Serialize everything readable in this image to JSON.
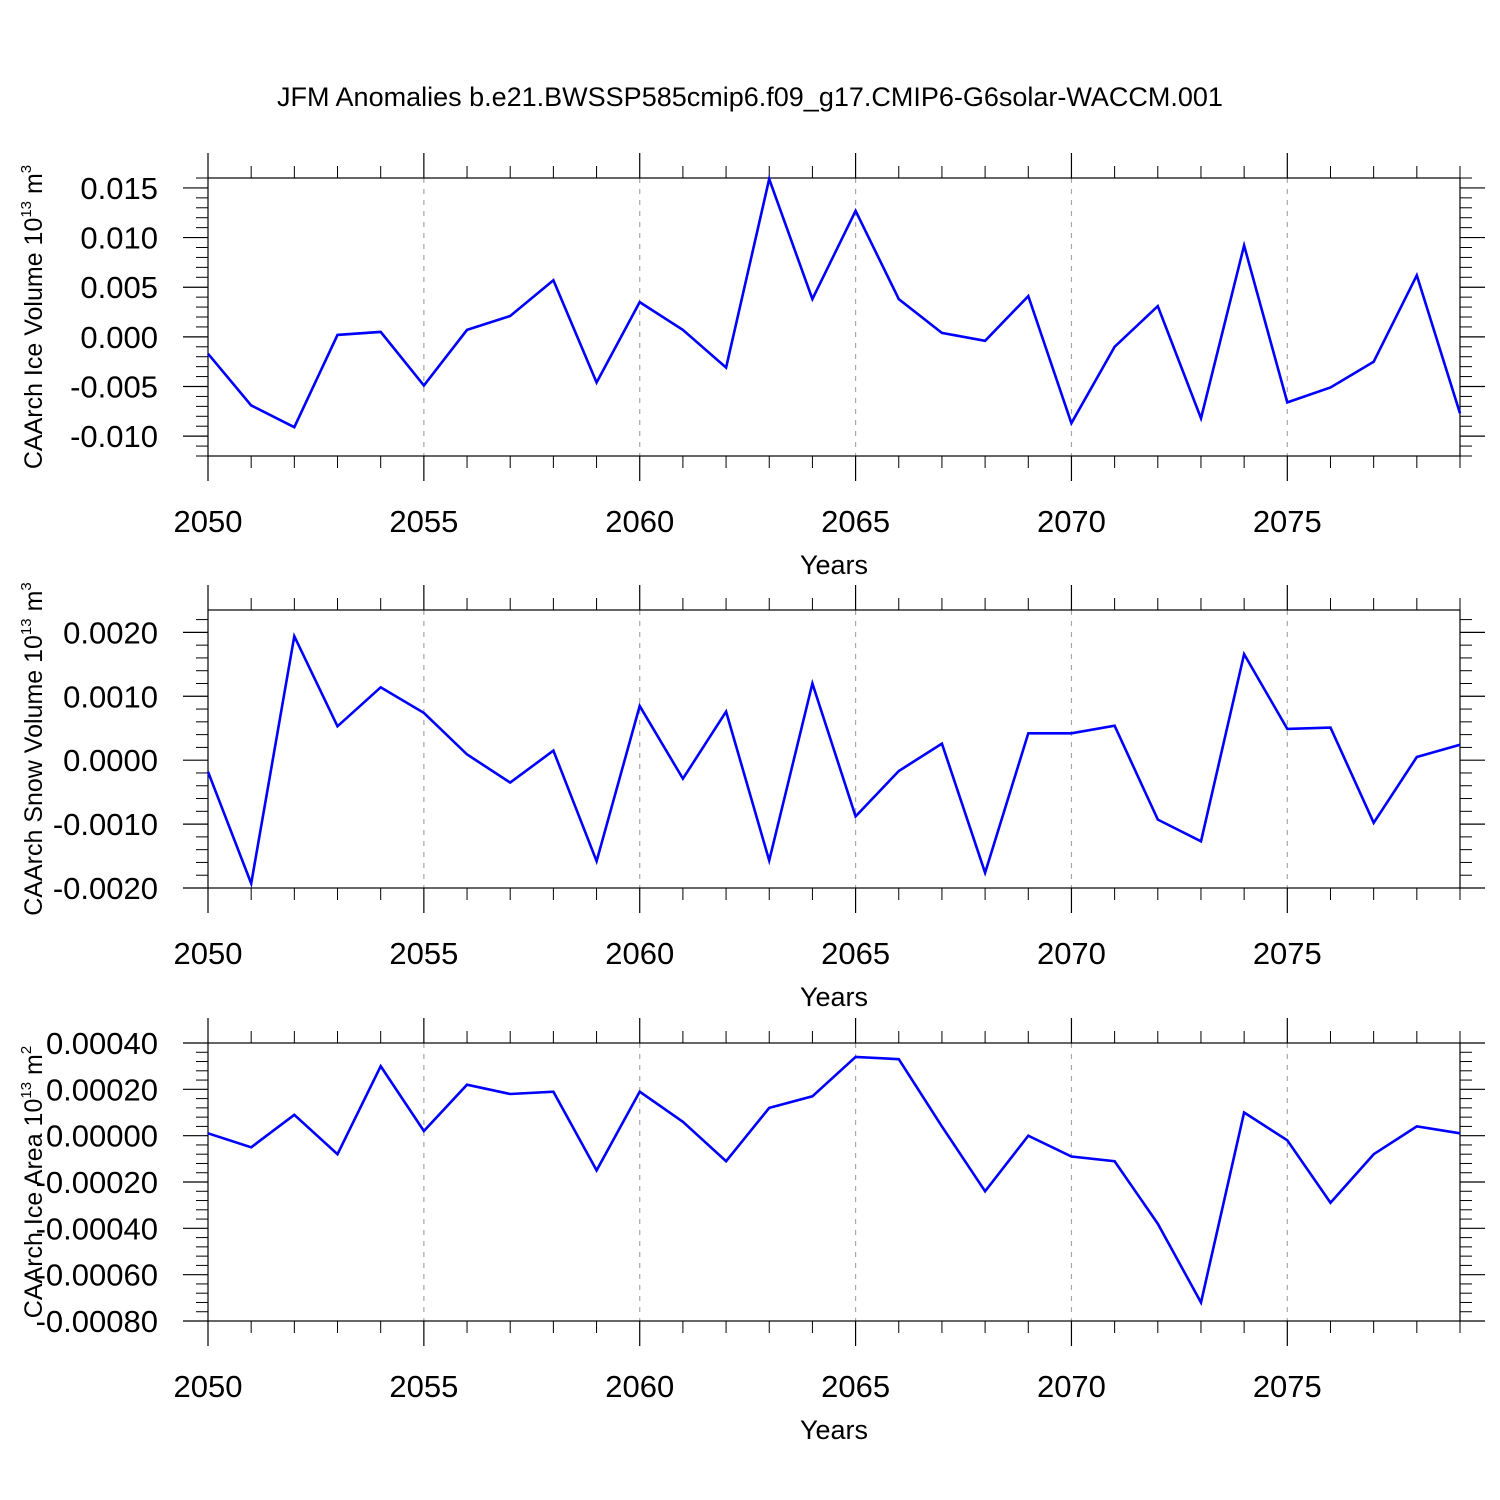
{
  "title": "JFM Anomalies b.e21.BWSSP585cmip6.f09_g17.CMIP6-G6solar-WACCM.001",
  "colors": {
    "line": "#0000ff",
    "grid": "#a8a8a8",
    "axes": "#000000"
  },
  "chart_data": [
    {
      "type": "line",
      "name": "ice-volume",
      "ylabel": "CAArch Ice Volume 10",
      "ylabel_sup": "13",
      "ylabel_unit": "m",
      "ylabel_unit_sup": "3",
      "xlabel": "Years",
      "xlim": [
        2050,
        2079
      ],
      "ylim": [
        -0.012,
        0.016
      ],
      "xticks": [
        2050,
        2055,
        2060,
        2065,
        2070,
        2075
      ],
      "xtick_labels": [
        "2050",
        "2055",
        "2060",
        "2065",
        "2070",
        "2075"
      ],
      "yticks": [
        -0.01,
        -0.005,
        0.0,
        0.005,
        0.01,
        0.015
      ],
      "ytick_labels": [
        "-0.010",
        "-0.005",
        "0.000",
        "0.005",
        "0.010",
        "0.015"
      ],
      "x": [
        2050,
        2051,
        2052,
        2053,
        2054,
        2055,
        2056,
        2057,
        2058,
        2059,
        2060,
        2061,
        2062,
        2063,
        2064,
        2065,
        2066,
        2067,
        2068,
        2069,
        2070,
        2071,
        2072,
        2073,
        2074,
        2075,
        2076,
        2077,
        2078,
        2079
      ],
      "values": [
        -0.0017,
        -0.0069,
        -0.0091,
        0.0002,
        0.0005,
        -0.0049,
        0.0007,
        0.0021,
        0.0057,
        -0.0046,
        0.0035,
        0.0007,
        -0.0031,
        0.0159,
        0.0038,
        0.0127,
        0.0038,
        0.0004,
        -0.0004,
        0.0041,
        -0.0087,
        -0.001,
        0.0031,
        -0.0082,
        0.0092,
        -0.0066,
        -0.0051,
        -0.0025,
        0.0062,
        -0.0077
      ]
    },
    {
      "type": "line",
      "name": "snow-volume",
      "ylabel": "CAArch Snow Volume 10",
      "ylabel_sup": "13",
      "ylabel_unit": "m",
      "ylabel_unit_sup": "3",
      "xlabel": "Years",
      "xlim": [
        2050,
        2079
      ],
      "ylim": [
        -0.002,
        0.00235
      ],
      "xticks": [
        2050,
        2055,
        2060,
        2065,
        2070,
        2075
      ],
      "xtick_labels": [
        "2050",
        "2055",
        "2060",
        "2065",
        "2070",
        "2075"
      ],
      "yticks": [
        -0.002,
        -0.001,
        0.0,
        0.001,
        0.002
      ],
      "ytick_labels": [
        "-0.0020",
        "-0.0010",
        "0.0000",
        "0.0010",
        "0.0020"
      ],
      "x": [
        2050,
        2051,
        2052,
        2053,
        2054,
        2055,
        2056,
        2057,
        2058,
        2059,
        2060,
        2061,
        2062,
        2063,
        2064,
        2065,
        2066,
        2067,
        2068,
        2069,
        2070,
        2071,
        2072,
        2073,
        2074,
        2075,
        2076,
        2077,
        2078,
        2079
      ],
      "values": [
        -0.00018,
        -0.00193,
        0.00194,
        0.00053,
        0.00114,
        0.00074,
        9e-05,
        -0.00035,
        0.00015,
        -0.00158,
        0.00085,
        -0.00029,
        0.00076,
        -0.00157,
        0.0012,
        -0.00088,
        -0.00017,
        0.00026,
        -0.00176,
        0.00042,
        0.00042,
        0.00054,
        -0.00093,
        -0.00127,
        0.00166,
        0.00049,
        0.00051,
        -0.00098,
        5e-05,
        0.00024
      ]
    },
    {
      "type": "line",
      "name": "ice-area",
      "ylabel": "CAArch Ice Area 10",
      "ylabel_sup": "13",
      "ylabel_unit": "m",
      "ylabel_unit_sup": "2",
      "xlabel": "Years",
      "xlim": [
        2050,
        2079
      ],
      "ylim": [
        -0.0008,
        0.0004
      ],
      "xticks": [
        2050,
        2055,
        2060,
        2065,
        2070,
        2075
      ],
      "xtick_labels": [
        "2050",
        "2055",
        "2060",
        "2065",
        "2070",
        "2075"
      ],
      "yticks": [
        -0.0008,
        -0.0006,
        -0.0004,
        -0.0002,
        0.0,
        0.0002,
        0.0004
      ],
      "ytick_labels": [
        "-0.00080",
        "-0.00060",
        "-0.00040",
        "-0.00020",
        "0.00000",
        "0.00020",
        "0.00040"
      ],
      "x": [
        2050,
        2051,
        2052,
        2053,
        2054,
        2055,
        2056,
        2057,
        2058,
        2059,
        2060,
        2061,
        2062,
        2063,
        2064,
        2065,
        2066,
        2067,
        2068,
        2069,
        2070,
        2071,
        2072,
        2073,
        2074,
        2075,
        2076,
        2077,
        2078,
        2079
      ],
      "values": [
        1e-05,
        -5e-05,
        9e-05,
        -8e-05,
        0.0003,
        2e-05,
        0.00022,
        0.00018,
        0.00019,
        -0.00015,
        0.00019,
        6e-05,
        -0.00011,
        0.00012,
        0.00017,
        0.00034,
        0.00033,
        4e-05,
        -0.00024,
        0.0,
        -9e-05,
        -0.00011,
        -0.00038,
        -0.00072,
        0.0001,
        -2e-05,
        -0.00029,
        -8e-05,
        4e-05,
        1e-05
      ]
    }
  ]
}
